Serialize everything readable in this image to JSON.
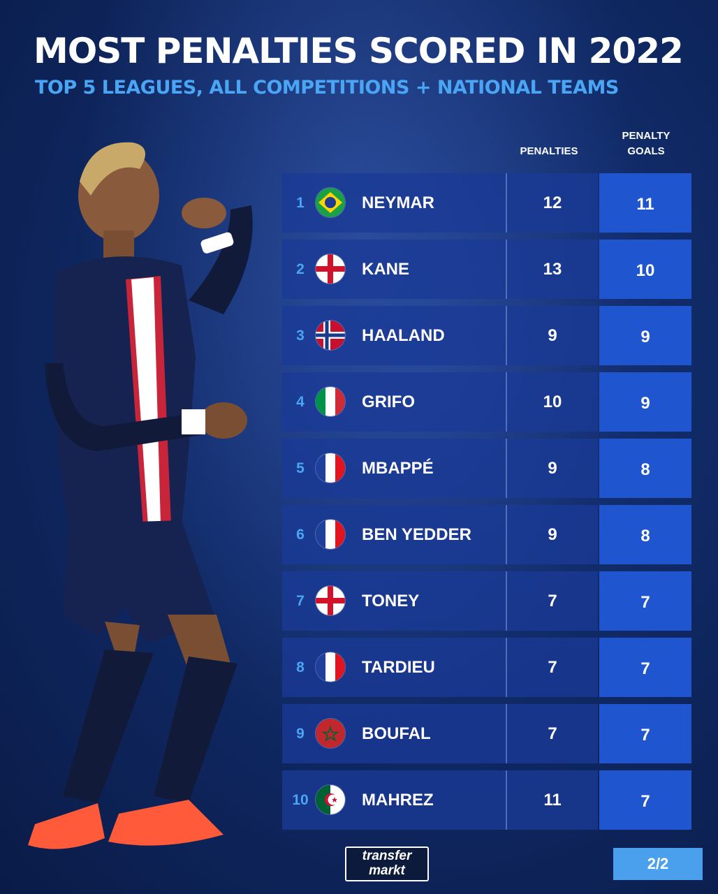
{
  "title": "MOST PENALTIES SCORED IN 2022",
  "subtitle": "TOP 5 LEAGUES, ALL COMPETITIONS + NATIONAL TEAMS",
  "columns": {
    "penalties": "PENALTIES",
    "penalty_goals_line1": "PENALTY",
    "penalty_goals_line2": "GOALS"
  },
  "rows": [
    {
      "rank": "1",
      "flag": "brazil-flag-icon",
      "name": "NEYMAR",
      "penalties": "12",
      "penalty_goals": "11"
    },
    {
      "rank": "2",
      "flag": "england-flag-icon",
      "name": "KANE",
      "penalties": "13",
      "penalty_goals": "10"
    },
    {
      "rank": "3",
      "flag": "norway-flag-icon",
      "name": "HAALAND",
      "penalties": "9",
      "penalty_goals": "9"
    },
    {
      "rank": "4",
      "flag": "italy-flag-icon",
      "name": "GRIFO",
      "penalties": "10",
      "penalty_goals": "9"
    },
    {
      "rank": "5",
      "flag": "france-flag-icon",
      "name": "MBAPPÉ",
      "penalties": "9",
      "penalty_goals": "8"
    },
    {
      "rank": "6",
      "flag": "france-flag-icon",
      "name": "BEN YEDDER",
      "penalties": "9",
      "penalty_goals": "8"
    },
    {
      "rank": "7",
      "flag": "england-flag-icon",
      "name": "TONEY",
      "penalties": "7",
      "penalty_goals": "7"
    },
    {
      "rank": "8",
      "flag": "france-flag-icon",
      "name": "TARDIEU",
      "penalties": "7",
      "penalty_goals": "7"
    },
    {
      "rank": "9",
      "flag": "morocco-flag-icon",
      "name": "BOUFAL",
      "penalties": "7",
      "penalty_goals": "7"
    },
    {
      "rank": "10",
      "flag": "algeria-flag-icon",
      "name": "MAHREZ",
      "penalties": "11",
      "penalty_goals": "7"
    }
  ],
  "logo": {
    "line1": "transfer",
    "line2": "markt"
  },
  "page_indicator": "2/2",
  "colors": {
    "background": "#102a66",
    "row": "#1a3a96",
    "goal_column": "#1f56cf",
    "accent": "#4aa5f5"
  }
}
